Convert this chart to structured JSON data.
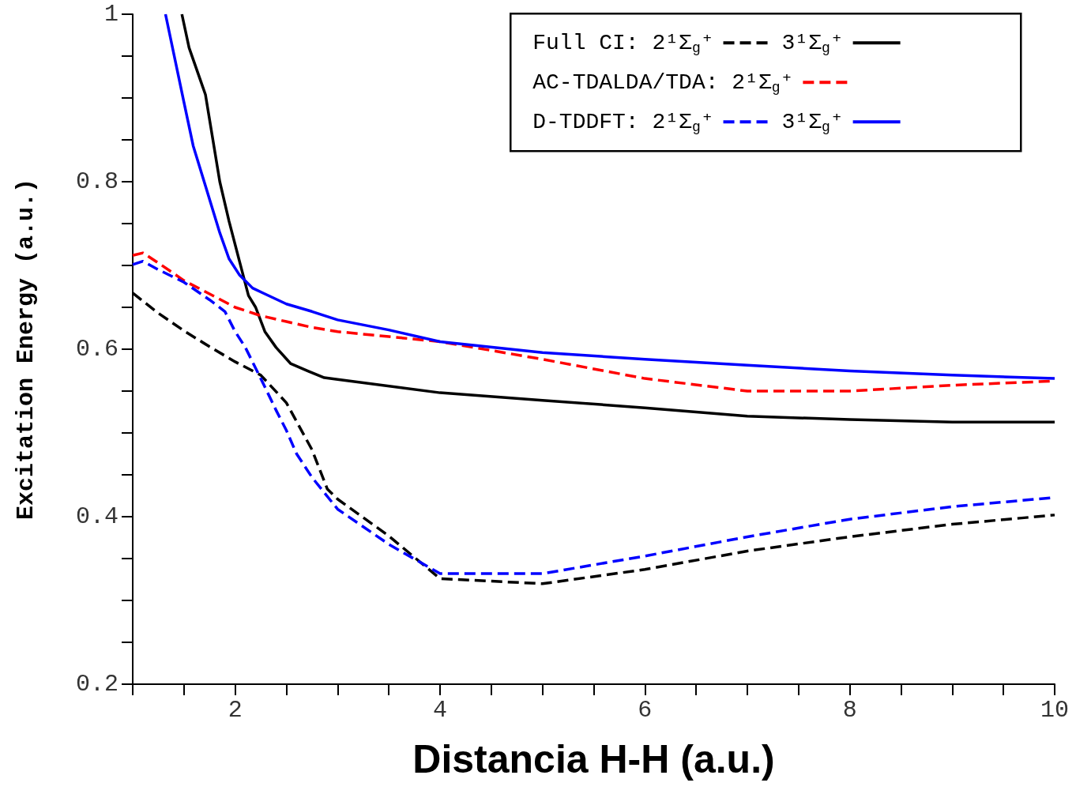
{
  "chart_data": {
    "type": "line",
    "xlabel": "Distancia H-H (a.u.)",
    "ylabel": "Excitation Energy (a.u.)",
    "xlim": [
      1,
      10
    ],
    "ylim": [
      0.2,
      1
    ],
    "xticks": [
      {
        "value": 1,
        "label": null
      },
      {
        "value": 1.5,
        "label": null
      },
      2,
      {
        "value": 2.5,
        "label": null
      },
      {
        "value": 3,
        "label": null
      },
      {
        "value": 3.5,
        "label": null
      },
      4,
      {
        "value": 4.5,
        "label": null
      },
      {
        "value": 5,
        "label": null
      },
      {
        "value": 5.5,
        "label": null
      },
      6,
      {
        "value": 6.5,
        "label": null
      },
      {
        "value": 7,
        "label": null
      },
      {
        "value": 7.5,
        "label": null
      },
      8,
      {
        "value": 8.5,
        "label": null
      },
      {
        "value": 9,
        "label": null
      },
      {
        "value": 9.5,
        "label": null
      },
      10
    ],
    "yticks": [
      0.2,
      {
        "value": 0.25,
        "label": null
      },
      {
        "value": 0.3,
        "label": null
      },
      {
        "value": 0.35,
        "label": null
      },
      0.4,
      {
        "value": 0.45,
        "label": null
      },
      {
        "value": 0.5,
        "label": null
      },
      {
        "value": 0.55,
        "label": null
      },
      0.6,
      {
        "value": 0.65,
        "label": null
      },
      {
        "value": 0.7,
        "label": null
      },
      {
        "value": 0.75,
        "label": null
      },
      0.8,
      {
        "value": 0.85,
        "label": null
      },
      {
        "value": 0.9,
        "label": null
      },
      {
        "value": 0.95,
        "label": null
      },
      1
    ],
    "grid": false,
    "legend": "top right",
    "marker": "none",
    "series": [
      {
        "name": "Full CI: 2¹Σ$_{g}$⁺",
        "color": "#000000",
        "line_style": "dashed",
        "x": [
          1,
          1.25,
          1.5,
          1.75,
          2,
          2.25,
          2.5,
          2.75,
          2.9,
          3,
          3.5,
          4,
          5,
          6,
          7,
          8,
          9,
          10
        ],
        "values": [
          0.667,
          0.643,
          0.622,
          0.603,
          0.585,
          0.569,
          0.536,
          0.48,
          0.433,
          0.421,
          0.377,
          0.326,
          0.32,
          0.337,
          0.359,
          0.376,
          0.391,
          0.402
        ]
      },
      {
        "name": "3¹Σ$_{g}$⁺",
        "color": "#000000",
        "line_style": "solid",
        "x": [
          1.48,
          1.55,
          1.71,
          1.85,
          1.94,
          2.04,
          2.13,
          2.2,
          2.29,
          2.4,
          2.54,
          2.71,
          2.87,
          3,
          4,
          5,
          6,
          7,
          8,
          9,
          10
        ],
        "values": [
          1.0,
          0.96,
          0.904,
          0.8,
          0.753,
          0.706,
          0.664,
          0.65,
          0.621,
          0.602,
          0.583,
          0.574,
          0.566,
          0.564,
          0.548,
          0.539,
          0.53,
          0.52,
          0.516,
          0.513,
          0.513
        ]
      },
      {
        "name": "AC-TDALDA/TDA: 2¹Σ$_{g}$⁺",
        "color": "#ff0000",
        "line_style": "dashed",
        "x": [
          1,
          1.1,
          1.25,
          1.5,
          1.75,
          2,
          2.25,
          2.5,
          2.75,
          3,
          3.5,
          4,
          5,
          6,
          7,
          8,
          9,
          10
        ],
        "values": [
          0.712,
          0.715,
          0.703,
          0.682,
          0.666,
          0.65,
          0.64,
          0.633,
          0.626,
          0.621,
          0.615,
          0.609,
          0.588,
          0.565,
          0.55,
          0.55,
          0.557,
          0.562
        ]
      },
      {
        "name": "D-TDDFT: 2¹Σ$_{g}$⁺",
        "color": "#0000ff",
        "line_style": "dashed",
        "x": [
          1,
          1.1,
          1.25,
          1.5,
          1.75,
          1.9,
          2,
          2.1,
          2.25,
          2.4,
          2.5,
          2.6,
          2.75,
          3,
          3.5,
          4,
          5,
          6,
          7,
          8,
          9,
          10
        ],
        "values": [
          0.701,
          0.705,
          0.695,
          0.68,
          0.659,
          0.645,
          0.621,
          0.602,
          0.565,
          0.527,
          0.503,
          0.475,
          0.447,
          0.409,
          0.367,
          0.332,
          0.332,
          0.353,
          0.376,
          0.397,
          0.412,
          0.423
        ]
      },
      {
        "name": "3¹Σ$_{g}$⁺",
        "color": "#0000ff",
        "line_style": "solid",
        "x": [
          1.32,
          1.5,
          1.59,
          1.71,
          1.85,
          1.94,
          2.04,
          2.17,
          2.29,
          2.5,
          2.75,
          3,
          3.5,
          4,
          5,
          6,
          7,
          8,
          9,
          10
        ],
        "values": [
          1.0,
          0.895,
          0.843,
          0.795,
          0.739,
          0.708,
          0.689,
          0.673,
          0.666,
          0.654,
          0.645,
          0.635,
          0.623,
          0.609,
          0.596,
          0.588,
          0.581,
          0.574,
          0.569,
          0.565
        ]
      }
    ]
  }
}
